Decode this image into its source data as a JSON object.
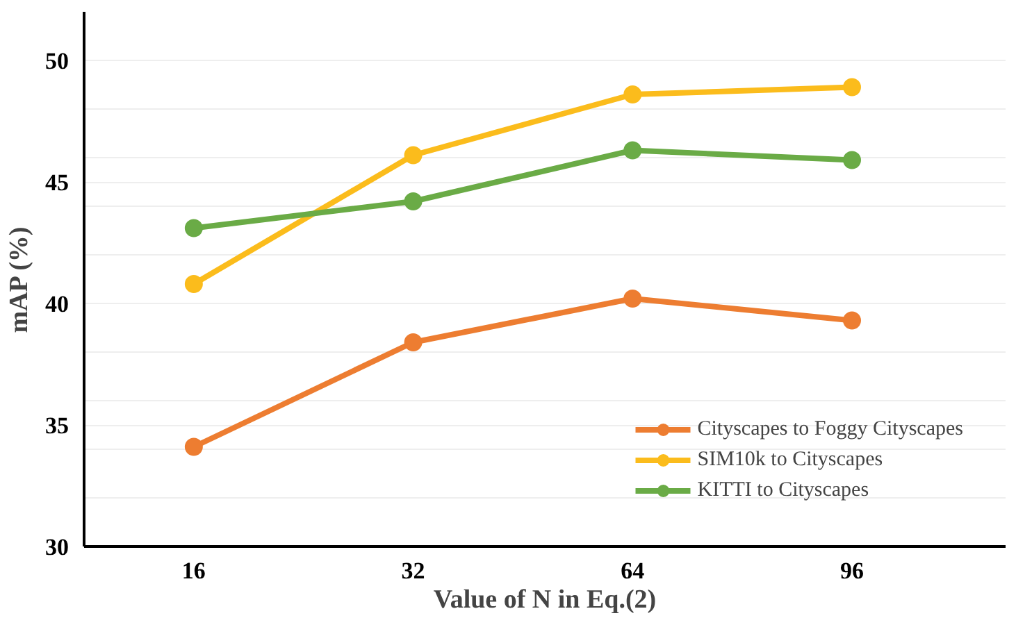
{
  "chart_data": {
    "type": "line",
    "xlabel": "Value of N in Eq.(2)",
    "ylabel": "mAP (%)",
    "categories": [
      "16",
      "32",
      "64",
      "96"
    ],
    "series": [
      {
        "name": "Cityscapes to Foggy Cityscapes",
        "color": "#ed7d31",
        "values": [
          34.1,
          38.4,
          40.2,
          39.3
        ]
      },
      {
        "name": "SIM10k to Cityscapes",
        "color": "#fbbc1c",
        "values": [
          40.8,
          46.1,
          48.6,
          48.9
        ]
      },
      {
        "name": "KITTI to Cityscapes",
        "color": "#6aab46",
        "values": [
          43.1,
          44.2,
          46.3,
          45.9
        ]
      }
    ],
    "ylim": [
      30,
      52
    ],
    "yticks": [
      30,
      {
        "value": 32,
        "label": null
      },
      {
        "value": 34,
        "label": null
      },
      35,
      {
        "value": 36,
        "label": null
      },
      {
        "value": 38,
        "label": null
      },
      40,
      {
        "value": 42,
        "label": null
      },
      {
        "value": 44,
        "label": null
      },
      45,
      {
        "value": 46,
        "label": null
      },
      {
        "value": 48,
        "label": null
      },
      50
    ],
    "grid": "y",
    "legend": "bottom right",
    "marker": "circle",
    "line_style": "solid"
  }
}
